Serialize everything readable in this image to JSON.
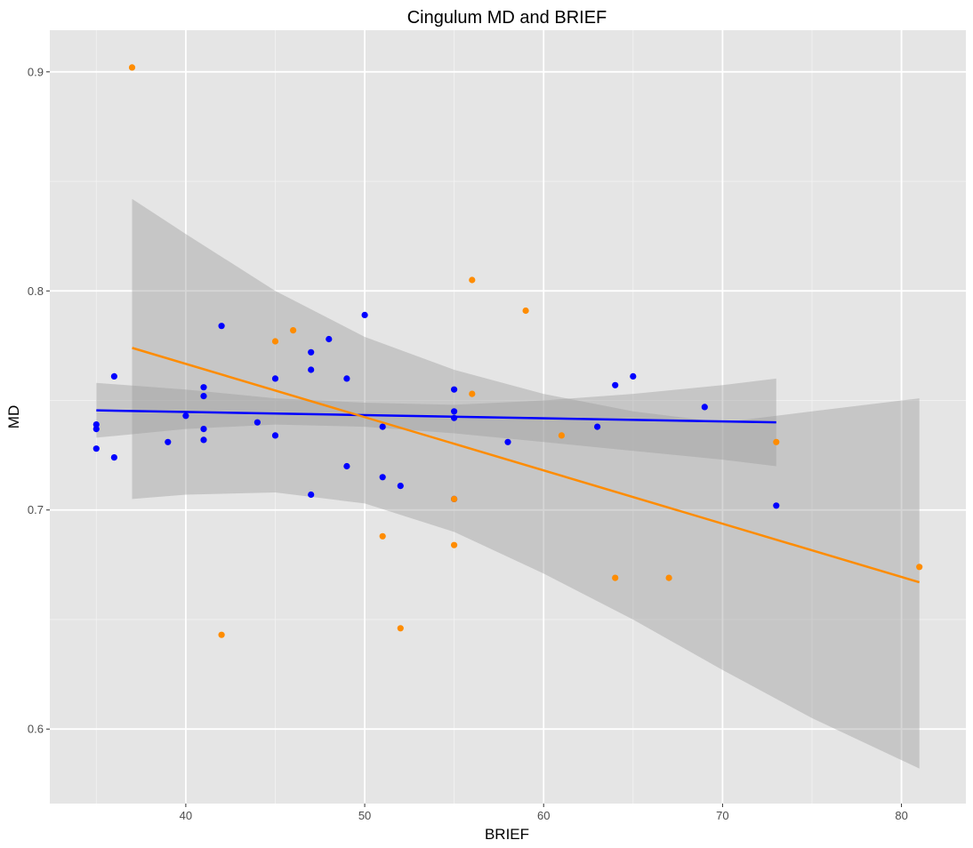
{
  "chart_data": {
    "type": "scatter",
    "title": "Cingulum MD and BRIEF",
    "xlabel": "BRIEF",
    "ylabel": "MD",
    "xlim": [
      32.4,
      83.6
    ],
    "ylim": [
      0.566,
      0.919
    ],
    "x_ticks": [
      40,
      50,
      60,
      70,
      80
    ],
    "x_tick_labels": [
      "40",
      "50",
      "60",
      "70",
      "80"
    ],
    "y_ticks": [
      0.6,
      0.7,
      0.8,
      0.9
    ],
    "y_tick_labels": [
      "0.6",
      "0.7",
      "0.8",
      "0.9"
    ],
    "grid": true,
    "legend": "none",
    "series": [
      {
        "color": "#0000ff",
        "points": [
          [
            35,
            0.739
          ],
          [
            35,
            0.737
          ],
          [
            35,
            0.728
          ],
          [
            36,
            0.761
          ],
          [
            36,
            0.724
          ],
          [
            39,
            0.731
          ],
          [
            40,
            0.743
          ],
          [
            41,
            0.756
          ],
          [
            41,
            0.752
          ],
          [
            41,
            0.737
          ],
          [
            41,
            0.732
          ],
          [
            42,
            0.784
          ],
          [
            44,
            0.74
          ],
          [
            45,
            0.76
          ],
          [
            45,
            0.734
          ],
          [
            47,
            0.772
          ],
          [
            47,
            0.764
          ],
          [
            47,
            0.707
          ],
          [
            48,
            0.778
          ],
          [
            49,
            0.76
          ],
          [
            49,
            0.72
          ],
          [
            50,
            0.789
          ],
          [
            51,
            0.738
          ],
          [
            51,
            0.715
          ],
          [
            52,
            0.711
          ],
          [
            55,
            0.755
          ],
          [
            55,
            0.745
          ],
          [
            55,
            0.742
          ],
          [
            55,
            0.705
          ],
          [
            58,
            0.731
          ],
          [
            63,
            0.738
          ],
          [
            64,
            0.757
          ],
          [
            65,
            0.761
          ],
          [
            69,
            0.747
          ],
          [
            73,
            0.702
          ]
        ],
        "fit": {
          "x": [
            35,
            73
          ],
          "y": [
            0.7455,
            0.74
          ]
        },
        "ci_band": {
          "x": [
            35,
            40,
            45,
            50,
            55,
            60,
            65,
            70,
            73
          ],
          "lower": [
            0.733,
            0.737,
            0.739,
            0.738,
            0.735,
            0.731,
            0.727,
            0.723,
            0.72
          ],
          "upper": [
            0.758,
            0.755,
            0.751,
            0.749,
            0.748,
            0.75,
            0.753,
            0.757,
            0.76
          ]
        }
      },
      {
        "color": "#ff8c00",
        "points": [
          [
            37,
            0.902
          ],
          [
            42,
            0.643
          ],
          [
            45,
            0.777
          ],
          [
            46,
            0.782
          ],
          [
            51,
            0.688
          ],
          [
            52,
            0.646
          ],
          [
            55,
            0.705
          ],
          [
            55,
            0.684
          ],
          [
            56,
            0.805
          ],
          [
            56,
            0.753
          ],
          [
            59,
            0.791
          ],
          [
            61,
            0.734
          ],
          [
            64,
            0.669
          ],
          [
            67,
            0.669
          ],
          [
            73,
            0.731
          ],
          [
            81,
            0.674
          ]
        ],
        "fit": {
          "x": [
            37,
            81
          ],
          "y": [
            0.774,
            0.667
          ]
        },
        "ci_band": {
          "x": [
            37,
            40,
            45,
            50,
            55,
            60,
            65,
            70,
            75,
            81
          ],
          "lower": [
            0.705,
            0.707,
            0.708,
            0.703,
            0.69,
            0.671,
            0.65,
            0.627,
            0.605,
            0.582
          ],
          "upper": [
            0.842,
            0.826,
            0.8,
            0.779,
            0.764,
            0.753,
            0.745,
            0.74,
            0.745,
            0.751
          ]
        }
      }
    ]
  }
}
